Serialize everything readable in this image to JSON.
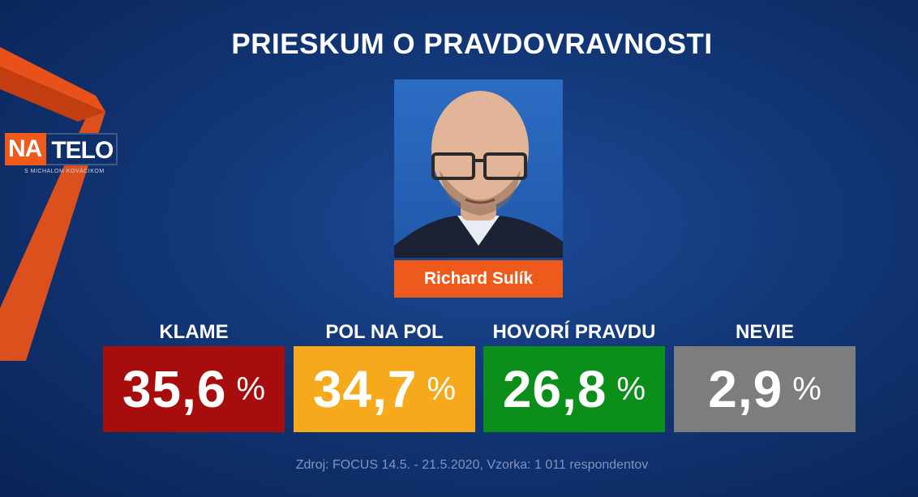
{
  "title": "PRIESKUM O PRAVDOVRAVNOSTI",
  "logo": {
    "part1": "NA",
    "part2": "TELO",
    "subtitle": "S MICHALOM KOVÁČIKOM"
  },
  "person": {
    "name": "Richard Sulík"
  },
  "colors": {
    "accent": "#ee5a1b",
    "klame": "#a70d0d",
    "pol_na_pol": "#f5a91b",
    "hovori_pravdu": "#0c8f1a",
    "nevie": "#7d7d7d"
  },
  "chart_data": {
    "type": "table",
    "title": "PRIESKUM O PRAVDOVRAVNOSTI",
    "unit": "%",
    "categories": [
      "KLAME",
      "POL NA POL",
      "HOVORÍ PRAVDU",
      "NEVIE"
    ],
    "values": [
      35.6,
      34.7,
      26.8,
      2.9
    ],
    "value_labels": [
      "35,6",
      "34,7",
      "26,8",
      "2,9"
    ]
  },
  "source": "Zdroj: FOCUS 14.5. - 21.5.2020, Vzorka: 1 011 respondentov"
}
